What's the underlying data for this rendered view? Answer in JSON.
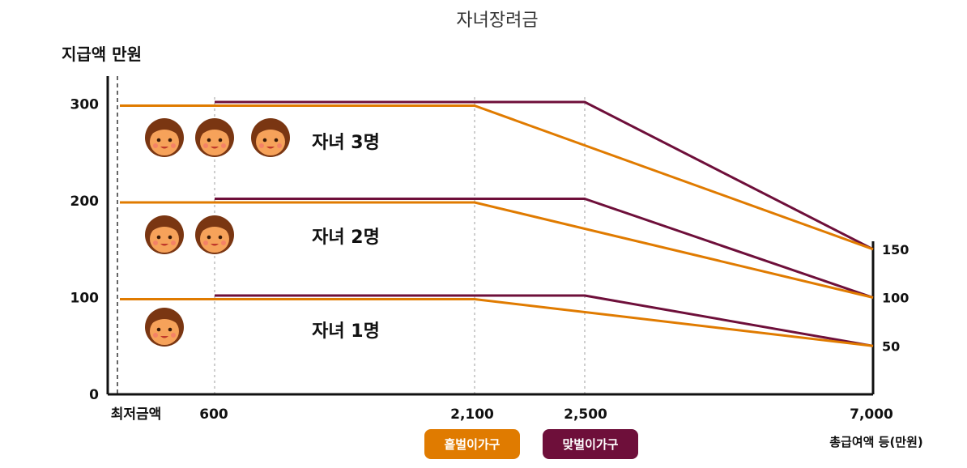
{
  "chart_data": {
    "type": "line",
    "title": "자녀장려금",
    "ylabel": "지급액 만원",
    "xlabel": "총급여액 등(만원)",
    "x_tick_labels": [
      "최저금액",
      "600",
      "2,100",
      "2,500",
      "7,000"
    ],
    "y_tick_labels": [
      "0",
      "100",
      "200",
      "300"
    ],
    "y_right_tick_labels": [
      "50",
      "100",
      "150"
    ],
    "ylim": [
      0,
      350
    ],
    "legend": [
      {
        "name": "홑벌이가구",
        "color": "#e07b00"
      },
      {
        "name": "맞벌이가구",
        "color": "#6e0f3a"
      }
    ],
    "groups": [
      {
        "label": "자녀 1명",
        "children": 1,
        "series": [
          {
            "name": "홑벌이가구",
            "points": [
              [
                0,
                100
              ],
              [
                2100,
                100
              ],
              [
                7000,
                50
              ]
            ]
          },
          {
            "name": "맞벌이가구",
            "points": [
              [
                600,
                100
              ],
              [
                2500,
                100
              ],
              [
                7000,
                50
              ]
            ]
          }
        ]
      },
      {
        "label": "자녀 2명",
        "children": 2,
        "series": [
          {
            "name": "홑벌이가구",
            "points": [
              [
                0,
                200
              ],
              [
                2100,
                200
              ],
              [
                7000,
                100
              ]
            ]
          },
          {
            "name": "맞벌이가구",
            "points": [
              [
                600,
                200
              ],
              [
                2500,
                200
              ],
              [
                7000,
                100
              ]
            ]
          }
        ]
      },
      {
        "label": "자녀 3명",
        "children": 3,
        "series": [
          {
            "name": "홑벌이가구",
            "points": [
              [
                0,
                300
              ],
              [
                2100,
                300
              ],
              [
                7000,
                150
              ]
            ]
          },
          {
            "name": "맞벌이가구",
            "points": [
              [
                600,
                300
              ],
              [
                2500,
                300
              ],
              [
                7000,
                150
              ]
            ]
          }
        ]
      }
    ]
  }
}
